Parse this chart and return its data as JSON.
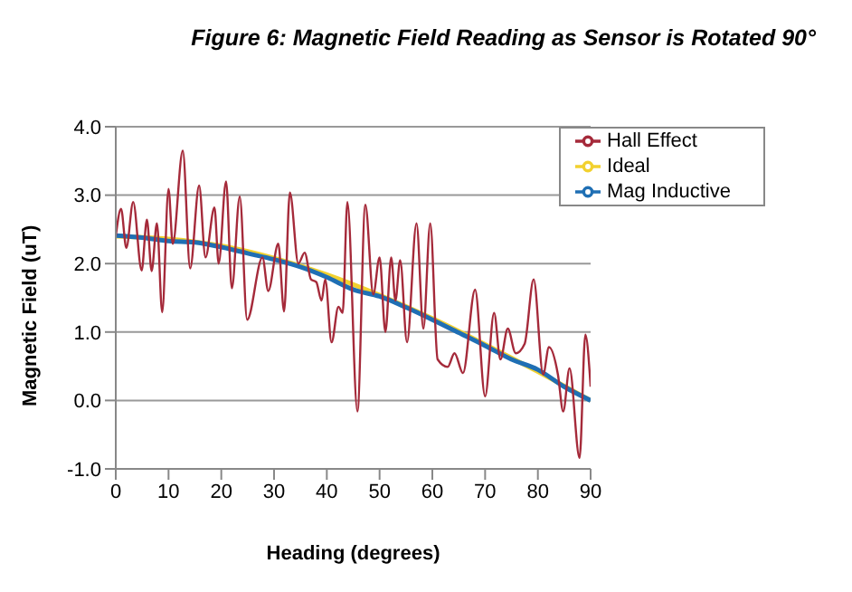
{
  "chart_data": {
    "type": "line",
    "title": "Figure 6:  Magnetic Field Reading as Sensor is Rotated 90°",
    "xlabel": "Heading (degrees)",
    "ylabel": "Magnetic Field (uT)",
    "xlim": [
      0,
      90
    ],
    "xticks": [
      0,
      10,
      20,
      30,
      40,
      50,
      60,
      70,
      80,
      90
    ],
    "ylim": [
      -1,
      4
    ],
    "yticks": [
      {
        "value": -1,
        "label": "-1.0"
      },
      {
        "value": 0,
        "label": "0.0"
      },
      {
        "value": 1,
        "label": "1.0"
      },
      {
        "value": 2,
        "label": "2.0"
      },
      {
        "value": 3,
        "label": "3.0"
      },
      {
        "value": 4,
        "label": "4.0"
      }
    ],
    "grid": "y",
    "legend": "top right",
    "marker": "none",
    "line_style": "solid",
    "series": [
      {
        "name": "Hall Effect",
        "color": "#a52a3a",
        "x": [
          0,
          1,
          2,
          3.3,
          4.9,
          5.9,
          6.8,
          7.8,
          8.8,
          10,
          10.8,
          12.7,
          14.1,
          15.8,
          17,
          18.7,
          19.5,
          20.9,
          22,
          23.5,
          24.9,
          27.8,
          28.9,
          30.8,
          31.9,
          33,
          34.6,
          35.8,
          37,
          38,
          39,
          39.7,
          40.9,
          42.2,
          43,
          43.9,
          45.8,
          47.3,
          48.8,
          50,
          51.1,
          52.2,
          53,
          53.9,
          55.2,
          57,
          58.3,
          59.6,
          61,
          62.9,
          64.2,
          65.8,
          68.1,
          70,
          71.7,
          72.9,
          74.3,
          75.8,
          77.5,
          79.2,
          81,
          82.1,
          83.8,
          84.8,
          86,
          87.9,
          89,
          90
        ],
        "values": [
          2.4,
          2.8,
          2.23,
          2.9,
          1.9,
          2.64,
          1.89,
          2.59,
          1.29,
          3.09,
          2.29,
          3.65,
          1.93,
          3.14,
          2.09,
          2.82,
          2.0,
          3.2,
          1.64,
          2.98,
          1.18,
          2.09,
          1.6,
          2.29,
          1.3,
          3.04,
          2.0,
          2.16,
          1.77,
          1.73,
          1.46,
          1.77,
          0.85,
          1.37,
          1.28,
          2.9,
          -0.16,
          2.86,
          1.55,
          2.09,
          1.0,
          2.09,
          1.46,
          2.05,
          0.85,
          2.59,
          1.05,
          2.59,
          0.6,
          0.49,
          0.69,
          0.4,
          1.62,
          0.06,
          1.28,
          0.6,
          1.05,
          0.69,
          0.83,
          1.77,
          0.38,
          0.78,
          0.38,
          -0.16,
          0.47,
          -0.84,
          0.96,
          0.2
        ]
      },
      {
        "name": "Mag Inductive",
        "color": "#1f6fb4",
        "x": [
          0,
          5,
          10,
          15,
          20,
          25,
          30,
          35,
          40,
          45,
          50,
          55,
          60,
          65,
          70,
          75,
          80,
          85,
          90
        ],
        "values": [
          2.41,
          2.38,
          2.33,
          2.31,
          2.24,
          2.15,
          2.06,
          1.95,
          1.8,
          1.62,
          1.52,
          1.36,
          1.18,
          0.99,
          0.8,
          0.6,
          0.45,
          0.2,
          0.0
        ]
      },
      {
        "name": "Ideal",
        "color": "#f2d12f",
        "x": [
          0,
          10,
          20,
          30,
          40,
          50,
          60,
          70,
          80,
          90
        ],
        "values": [
          2.4,
          2.36,
          2.26,
          2.08,
          1.84,
          1.54,
          1.2,
          0.82,
          0.42,
          0.0
        ]
      }
    ]
  }
}
